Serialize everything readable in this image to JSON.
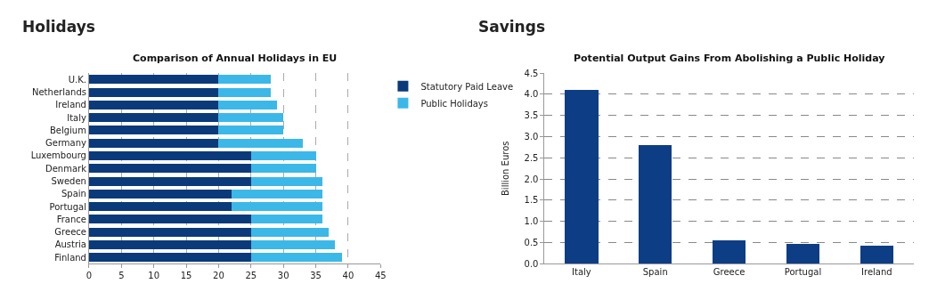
{
  "chart_data": [
    {
      "type": "bar",
      "title": "Holidays",
      "subtitle": "Comparison of Annual Holidays in EU",
      "orientation": "horizontal",
      "stacked": true,
      "categories": [
        "U.K.",
        "Netherlands",
        "Ireland",
        "Italy",
        "Belgium",
        "Germany",
        "Luxembourg",
        "Denmark",
        "Sweden",
        "Spain",
        "Portugal",
        "France",
        "Greece",
        "Austria",
        "Finland"
      ],
      "series": [
        {
          "name": "Statutory Paid Leave",
          "color": "#0a3a7a",
          "values": [
            20,
            20,
            20,
            20,
            20,
            20,
            25,
            25,
            25,
            22,
            22,
            25,
            25,
            25,
            25
          ]
        },
        {
          "name": "Public Holidays",
          "color": "#3bb8e8",
          "values": [
            8,
            8,
            9,
            10,
            10,
            13,
            10,
            10,
            11,
            14,
            14,
            11,
            12,
            13,
            14
          ]
        }
      ],
      "xlim": [
        0,
        45
      ],
      "xticks": [
        0,
        5,
        10,
        15,
        20,
        25,
        30,
        35,
        40,
        45
      ],
      "grid": "x",
      "legend": "top right"
    },
    {
      "type": "bar",
      "title": "Savings",
      "subtitle": "Potential Output Gains From Abolishing a Public Holiday",
      "ylabel": "Billion Euros",
      "categories": [
        "Italy",
        "Spain",
        "Greece",
        "Portugal",
        "Ireland"
      ],
      "series": [
        {
          "color": "#0d3d85",
          "values": [
            4.1,
            2.8,
            0.56,
            0.46,
            0.42
          ]
        }
      ],
      "ylim": [
        0,
        4.5
      ],
      "yticks": [
        {
          "value": 0,
          "label": "0.0"
        },
        {
          "value": 0.5,
          "label": "0.5"
        },
        {
          "value": 1,
          "label": "1.0"
        },
        {
          "value": 1.5,
          "label": "1.5"
        },
        {
          "value": 2,
          "label": "2.0"
        },
        {
          "value": 2.5,
          "label": "2.5"
        },
        {
          "value": 3,
          "label": "3.0"
        },
        {
          "value": 3.5,
          "label": "3.5"
        },
        {
          "value": 4,
          "label": "4.0"
        },
        {
          "value": 4.5,
          "label": "4.5"
        }
      ],
      "grid": "y"
    }
  ]
}
